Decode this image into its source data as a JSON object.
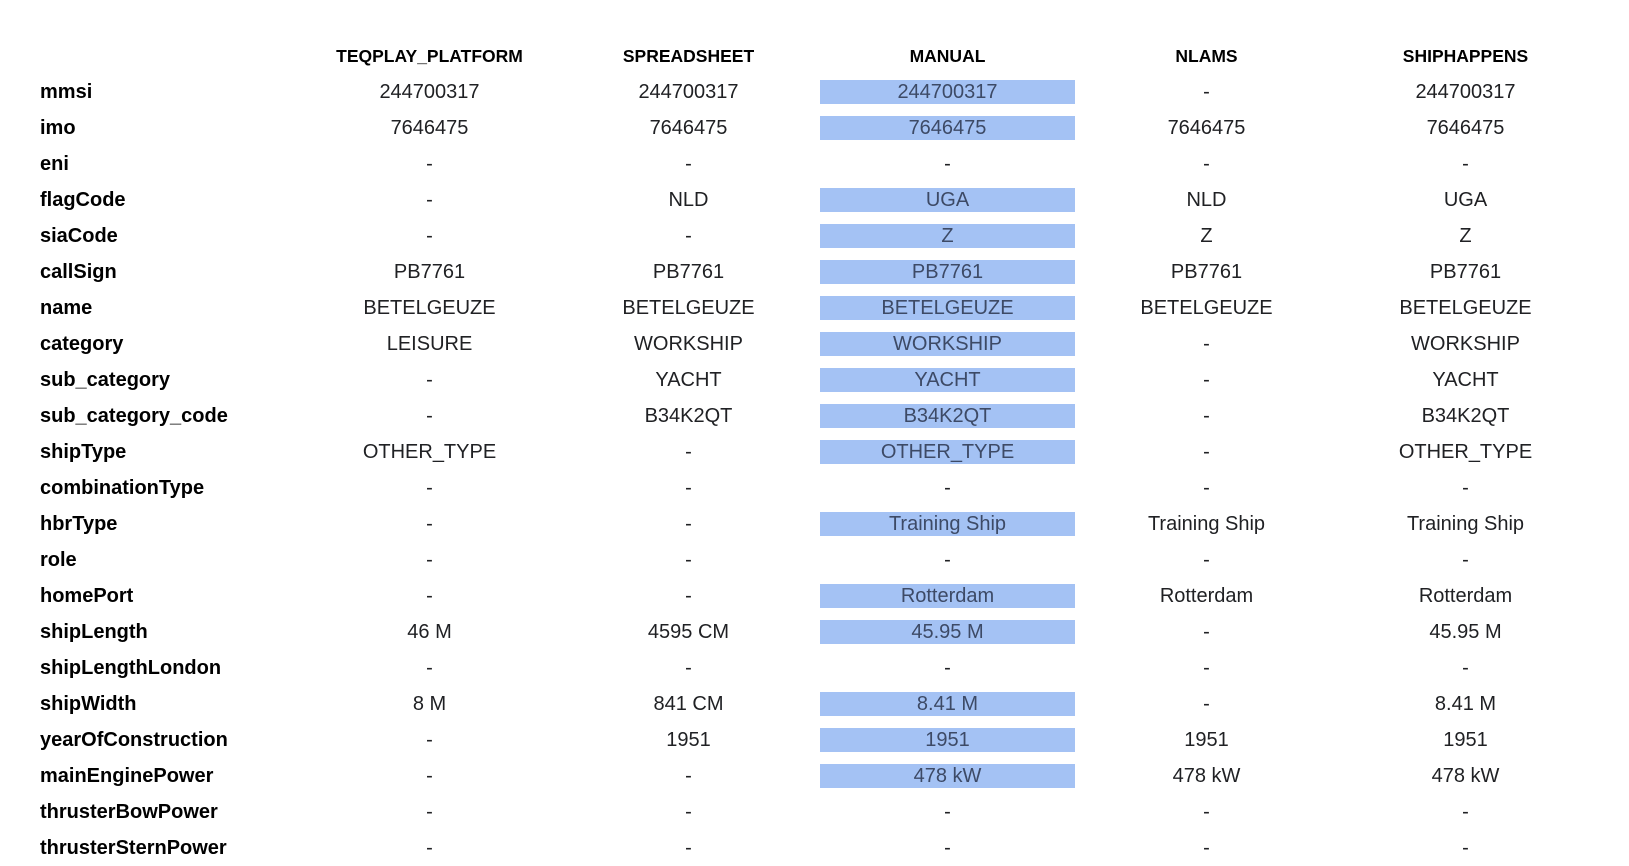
{
  "highlight_color": "#a4c2f4",
  "highlighted_column": "MANUAL",
  "columns": [
    "TEQPLAY_PLATFORM",
    "SPREADSHEET",
    "MANUAL",
    "NLAMS",
    "SHIPHAPPENS"
  ],
  "rows": [
    {
      "label": "mmsi",
      "values": [
        "244700317",
        "244700317",
        "244700317",
        "-",
        "244700317"
      ],
      "manual_highlighted": true
    },
    {
      "label": "imo",
      "values": [
        "7646475",
        "7646475",
        "7646475",
        "7646475",
        "7646475"
      ],
      "manual_highlighted": true
    },
    {
      "label": "eni",
      "values": [
        "-",
        "-",
        "-",
        "-",
        "-"
      ],
      "manual_highlighted": false
    },
    {
      "label": "flagCode",
      "values": [
        "-",
        "NLD",
        "UGA",
        "NLD",
        "UGA"
      ],
      "manual_highlighted": true
    },
    {
      "label": "siaCode",
      "values": [
        "-",
        "-",
        "Z",
        "Z",
        "Z"
      ],
      "manual_highlighted": true
    },
    {
      "label": "callSign",
      "values": [
        "PB7761",
        "PB7761",
        "PB7761",
        "PB7761",
        "PB7761"
      ],
      "manual_highlighted": true
    },
    {
      "label": "name",
      "values": [
        "BETELGEUZE",
        "BETELGEUZE",
        "BETELGEUZE",
        "BETELGEUZE",
        "BETELGEUZE"
      ],
      "manual_highlighted": true
    },
    {
      "label": "category",
      "values": [
        "LEISURE",
        "WORKSHIP",
        "WORKSHIP",
        "-",
        "WORKSHIP"
      ],
      "manual_highlighted": true
    },
    {
      "label": "sub_category",
      "values": [
        "-",
        "YACHT",
        "YACHT",
        "-",
        "YACHT"
      ],
      "manual_highlighted": true
    },
    {
      "label": "sub_category_code",
      "values": [
        "-",
        "B34K2QT",
        "B34K2QT",
        "-",
        "B34K2QT"
      ],
      "manual_highlighted": true
    },
    {
      "label": "shipType",
      "values": [
        "OTHER_TYPE",
        "-",
        "OTHER_TYPE",
        "-",
        "OTHER_TYPE"
      ],
      "manual_highlighted": true
    },
    {
      "label": "combinationType",
      "values": [
        "-",
        "-",
        "-",
        "-",
        "-"
      ],
      "manual_highlighted": false
    },
    {
      "label": "hbrType",
      "values": [
        "-",
        "-",
        "Training Ship",
        "Training Ship",
        "Training Ship"
      ],
      "manual_highlighted": true
    },
    {
      "label": "role",
      "values": [
        "-",
        "-",
        "-",
        "-",
        "-"
      ],
      "manual_highlighted": false
    },
    {
      "label": "homePort",
      "values": [
        "-",
        "-",
        "Rotterdam",
        "Rotterdam",
        "Rotterdam"
      ],
      "manual_highlighted": true
    },
    {
      "label": "shipLength",
      "values": [
        "46 M",
        "4595 CM",
        "45.95 M",
        "-",
        "45.95 M"
      ],
      "manual_highlighted": true
    },
    {
      "label": "shipLengthLondon",
      "values": [
        "-",
        "-",
        "-",
        "-",
        "-"
      ],
      "manual_highlighted": false
    },
    {
      "label": "shipWidth",
      "values": [
        "8 M",
        "841 CM",
        "8.41 M",
        "-",
        "8.41 M"
      ],
      "manual_highlighted": true
    },
    {
      "label": "yearOfConstruction",
      "values": [
        "-",
        "1951",
        "1951",
        "1951",
        "1951"
      ],
      "manual_highlighted": true
    },
    {
      "label": "mainEnginePower",
      "values": [
        "-",
        "-",
        "478 kW",
        "478 kW",
        "478 kW"
      ],
      "manual_highlighted": true
    },
    {
      "label": "thrusterBowPower",
      "values": [
        "-",
        "-",
        "-",
        "-",
        "-"
      ],
      "manual_highlighted": false
    },
    {
      "label": "thrusterSternPower",
      "values": [
        "-",
        "-",
        "-",
        "-",
        "-"
      ],
      "manual_highlighted": false
    }
  ]
}
